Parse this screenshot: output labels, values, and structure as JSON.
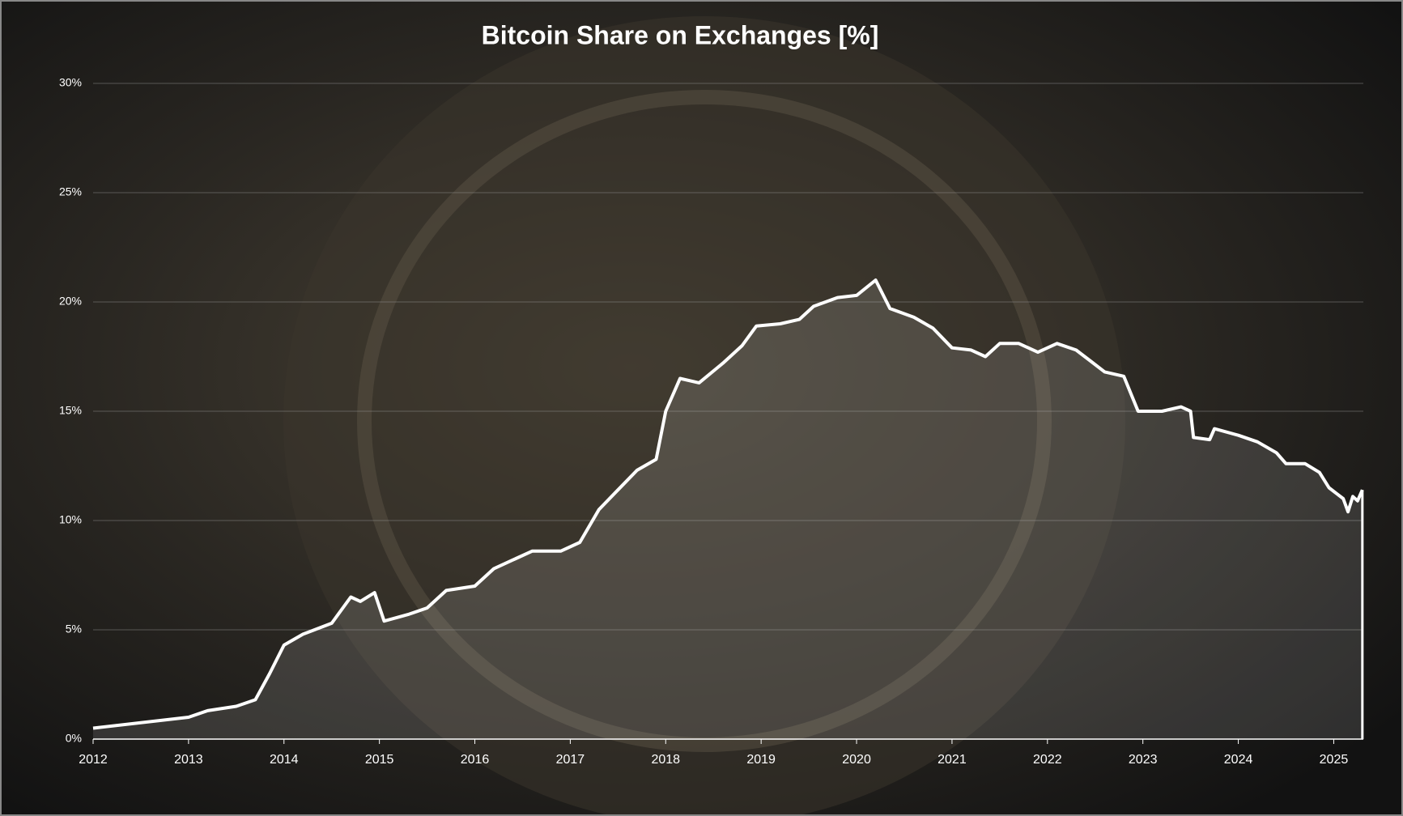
{
  "chart_data": {
    "type": "line",
    "title": "Bitcoin Share on Exchanges [%]",
    "color": "#ffffff",
    "grid": true,
    "x": [
      2012.0,
      2013.0,
      2013.2,
      2013.5,
      2013.7,
      2013.85,
      2014.0,
      2014.2,
      2014.5,
      2014.7,
      2014.8,
      2014.95,
      2015.05,
      2015.3,
      2015.5,
      2015.7,
      2016.0,
      2016.2,
      2016.4,
      2016.6,
      2016.9,
      2017.1,
      2017.3,
      2017.5,
      2017.7,
      2017.9,
      2018.0,
      2018.15,
      2018.35,
      2018.6,
      2018.8,
      2018.95,
      2019.2,
      2019.4,
      2019.55,
      2019.8,
      2020.0,
      2020.2,
      2020.35,
      2020.6,
      2020.8,
      2021.0,
      2021.2,
      2021.35,
      2021.5,
      2021.7,
      2021.9,
      2022.1,
      2022.3,
      2022.45,
      2022.6,
      2022.8,
      2022.95,
      2023.2,
      2023.4,
      2023.5,
      2023.53,
      2023.7,
      2023.75,
      2024.0,
      2024.2,
      2024.4,
      2024.5,
      2024.7,
      2024.85,
      2024.95,
      2025.1,
      2025.15,
      2025.2,
      2025.25,
      2025.3
    ],
    "values": [
      0.5,
      1.0,
      1.3,
      1.5,
      1.8,
      3.0,
      4.3,
      4.8,
      5.3,
      6.5,
      6.3,
      6.7,
      5.4,
      5.7,
      6.0,
      6.8,
      7.0,
      7.8,
      8.2,
      8.6,
      8.6,
      9.0,
      10.5,
      11.4,
      12.3,
      12.8,
      15.0,
      16.5,
      16.3,
      17.2,
      18.0,
      18.9,
      19.0,
      19.2,
      19.8,
      20.2,
      20.3,
      21.0,
      19.7,
      19.3,
      18.8,
      17.9,
      17.8,
      17.5,
      18.1,
      18.1,
      17.7,
      18.1,
      17.8,
      17.3,
      16.8,
      16.6,
      15.0,
      15.0,
      15.2,
      15.0,
      13.8,
      13.7,
      14.2,
      13.9,
      13.6,
      13.1,
      12.6,
      12.6,
      12.2,
      11.5,
      11.0,
      10.4,
      11.1,
      10.9,
      11.4
    ],
    "xlim": [
      2012,
      2025.31
    ],
    "xticks": [
      2012,
      2013,
      2014,
      2015,
      2016,
      2017,
      2018,
      2019,
      2020,
      2021,
      2022,
      2023,
      2024,
      2025
    ],
    "ylim": [
      0,
      30
    ],
    "yticks": [
      {
        "value": 0,
        "label": "0%"
      },
      {
        "value": 5,
        "label": "5%"
      },
      {
        "value": 10,
        "label": "10%"
      },
      {
        "value": 15,
        "label": "15%"
      },
      {
        "value": 20,
        "label": "20%"
      },
      {
        "value": 25,
        "label": "25%"
      },
      {
        "value": 30,
        "label": "30%"
      }
    ]
  }
}
